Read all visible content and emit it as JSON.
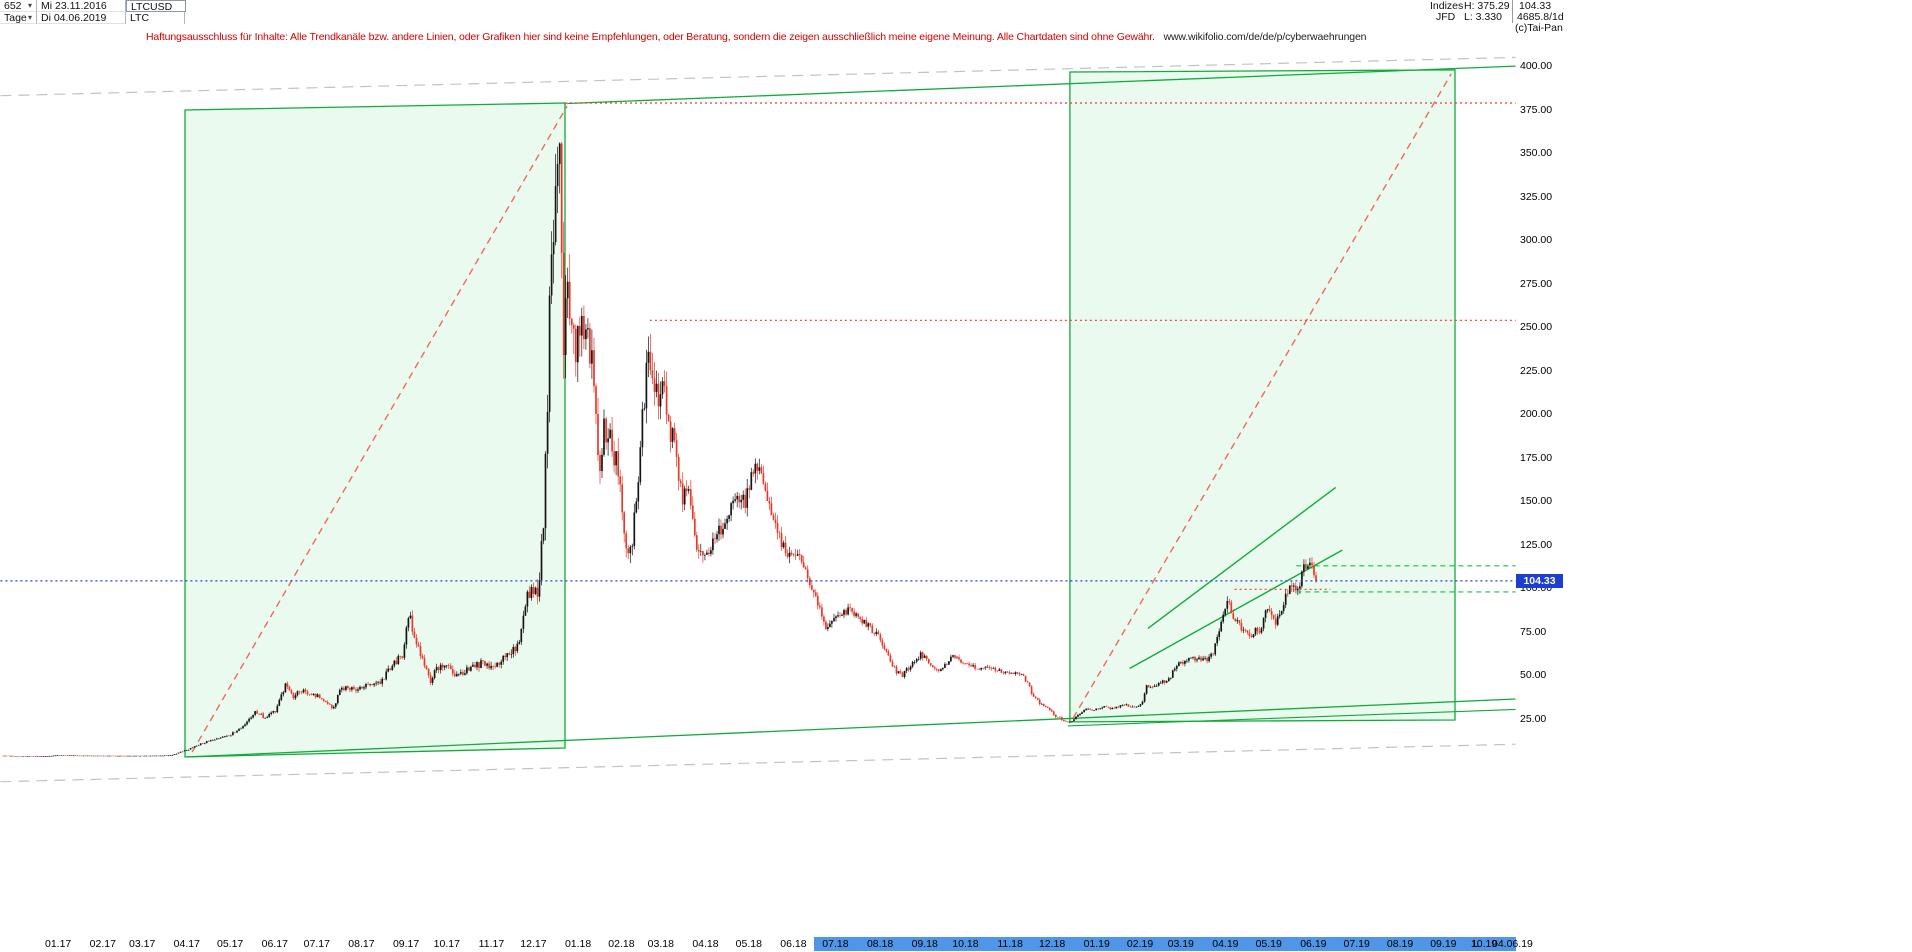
{
  "header": {
    "bars_count": "652",
    "first_date": "Mi 23.11.2016",
    "symbol": "LTCUSD",
    "period": "Tage",
    "last_date": "Di 04.06.2019",
    "symbol_short": "LTC",
    "right": {
      "indizes_label": "Indizes",
      "high_label": "H: 375.29",
      "last_price": "104.33",
      "broker": "JFD",
      "low_label": "L: 3.330",
      "volume": "4685.8/1d",
      "copyright": "(c)Tai-Pan"
    }
  },
  "icons": {
    "dropdown": "▾"
  },
  "disclaimer": {
    "text": "Haftungsausschluss für Inhalte: Alle Trendkanäle bzw. andere Linien, oder Grafiken hier sind keine Empfehlungen, oder Beratung, sondern die zeigen ausschließlich meine eigene Meinung. Alle Chartdaten sind ohne Gewähr.",
    "url": "www.wikifolio.com/de/de/p/cyberwaehrungen"
  },
  "chart_data": {
    "type": "candlestick",
    "symbol": "LTCUSD",
    "timeframe": "Tage",
    "bars": 652,
    "date_range": [
      "23.11.2016",
      "04.06.2019"
    ],
    "high": 375.29,
    "low": 3.33,
    "last": 104.33,
    "last_label": "104.33",
    "ylim": [
      0,
      420
    ],
    "grid": false,
    "colors": {
      "up": "#141414",
      "down": "#e8382a",
      "marker_bg": "#1c3ed2",
      "axis_highlight": "#4f96e8"
    },
    "y_axis": {
      "ticks": [
        "400.00",
        "375.00",
        "350.00",
        "325.00",
        "300.00",
        "275.00",
        "250.00",
        "225.00",
        "200.00",
        "175.00",
        "150.00",
        "125.00",
        "100.00",
        "75.00",
        "50.00",
        "25.00"
      ]
    },
    "x_axis": {
      "months": [
        [
          "01.17",
          0.042
        ],
        [
          "02.17",
          0.076
        ],
        [
          "03.17",
          0.106
        ],
        [
          "04.17",
          0.14
        ],
        [
          "05.17",
          0.173
        ],
        [
          "06.17",
          0.207
        ],
        [
          "07.17",
          0.239
        ],
        [
          "08.17",
          0.273
        ],
        [
          "09.17",
          0.307
        ],
        [
          "10.17",
          0.338
        ],
        [
          "11.17",
          0.372
        ],
        [
          "12.17",
          0.404
        ],
        [
          "01.18",
          0.438
        ],
        [
          "02.18",
          0.471
        ],
        [
          "03.18",
          0.501
        ],
        [
          "04.18",
          0.535
        ],
        [
          "05.18",
          0.568
        ],
        [
          "06.18",
          0.602
        ],
        [
          "07.18",
          0.634
        ],
        [
          "08.18",
          0.668
        ],
        [
          "09.18",
          0.702
        ],
        [
          "10.18",
          0.733
        ],
        [
          "11.18",
          0.767
        ],
        [
          "12.18",
          0.799
        ],
        [
          "01.19",
          0.833
        ],
        [
          "02.19",
          0.866
        ],
        [
          "03.19",
          0.897
        ],
        [
          "04.19",
          0.931
        ],
        [
          "05.19",
          0.964
        ],
        [
          "06.19",
          0.998
        ],
        [
          "07.19",
          1.031
        ],
        [
          "08.19",
          1.064
        ],
        [
          "09.19",
          1.097
        ],
        [
          "10.19",
          1.128
        ]
      ],
      "highlight_from_f": 0.618,
      "highlight_to_f": 1.1524,
      "last_marker": "L",
      "last_label": "04.06.19"
    },
    "price_path": [
      [
        0.0,
        3.9
      ],
      [
        0.015,
        3.6
      ],
      [
        0.03,
        3.5
      ],
      [
        0.042,
        4.2
      ],
      [
        0.06,
        4.0
      ],
      [
        0.076,
        3.9
      ],
      [
        0.095,
        3.8
      ],
      [
        0.11,
        3.9
      ],
      [
        0.128,
        4.1
      ],
      [
        0.134,
        5.8
      ],
      [
        0.14,
        7.2
      ],
      [
        0.15,
        10.5
      ],
      [
        0.162,
        13.8
      ],
      [
        0.173,
        15.8
      ],
      [
        0.182,
        20.5
      ],
      [
        0.192,
        29.5
      ],
      [
        0.2,
        25.5
      ],
      [
        0.208,
        30.0
      ],
      [
        0.215,
        44.0
      ],
      [
        0.221,
        38.0
      ],
      [
        0.228,
        41.5
      ],
      [
        0.236,
        39.0
      ],
      [
        0.245,
        36.5
      ],
      [
        0.251,
        30.5
      ],
      [
        0.258,
        43.5
      ],
      [
        0.266,
        42.0
      ],
      [
        0.276,
        43.5
      ],
      [
        0.288,
        47.0
      ],
      [
        0.298,
        57.0
      ],
      [
        0.305,
        63.0
      ],
      [
        0.309,
        86.0
      ],
      [
        0.314,
        69.0
      ],
      [
        0.32,
        60.0
      ],
      [
        0.325,
        46.5
      ],
      [
        0.331,
        54.0
      ],
      [
        0.338,
        54.5
      ],
      [
        0.345,
        50.5
      ],
      [
        0.355,
        53.5
      ],
      [
        0.364,
        56.5
      ],
      [
        0.372,
        55.0
      ],
      [
        0.38,
        59.0
      ],
      [
        0.388,
        64.0
      ],
      [
        0.394,
        71.0
      ],
      [
        0.399,
        95.0
      ],
      [
        0.403,
        101.0
      ],
      [
        0.408,
        99.0
      ],
      [
        0.412,
        140.0
      ],
      [
        0.4155,
        230.0
      ],
      [
        0.417,
        305.0
      ],
      [
        0.419,
        282.0
      ],
      [
        0.421,
        330.0
      ],
      [
        0.4232,
        372.0
      ],
      [
        0.425,
        310.0
      ],
      [
        0.427,
        238.0
      ],
      [
        0.43,
        270.0
      ],
      [
        0.433,
        258.0
      ],
      [
        0.436,
        234.0
      ],
      [
        0.44,
        242.0
      ],
      [
        0.444,
        251.0
      ],
      [
        0.449,
        232.0
      ],
      [
        0.4535,
        168.0
      ],
      [
        0.458,
        192.0
      ],
      [
        0.464,
        180.0
      ],
      [
        0.47,
        163.0
      ],
      [
        0.475,
        122.0
      ],
      [
        0.479,
        128.0
      ],
      [
        0.484,
        165.0
      ],
      [
        0.489,
        218.0
      ],
      [
        0.4925,
        232.0
      ],
      [
        0.497,
        208.0
      ],
      [
        0.503,
        213.0
      ],
      [
        0.51,
        186.0
      ],
      [
        0.517,
        150.0
      ],
      [
        0.522,
        163.0
      ],
      [
        0.529,
        120.0
      ],
      [
        0.535,
        118.0
      ],
      [
        0.541,
        127.0
      ],
      [
        0.55,
        139.0
      ],
      [
        0.558,
        154.0
      ],
      [
        0.565,
        149.0
      ],
      [
        0.57,
        166.0
      ],
      [
        0.574,
        174.0
      ],
      [
        0.582,
        152.0
      ],
      [
        0.59,
        131.0
      ],
      [
        0.598,
        117.0
      ],
      [
        0.603,
        121.0
      ],
      [
        0.61,
        112.0
      ],
      [
        0.618,
        96.0
      ],
      [
        0.626,
        78.0
      ],
      [
        0.632,
        81.0
      ],
      [
        0.639,
        84.5
      ],
      [
        0.646,
        88.0
      ],
      [
        0.653,
        81.5
      ],
      [
        0.661,
        77.0
      ],
      [
        0.668,
        71.0
      ],
      [
        0.674,
        61.5
      ],
      [
        0.68,
        52.5
      ],
      [
        0.685,
        50.0
      ],
      [
        0.692,
        56.5
      ],
      [
        0.699,
        62.0
      ],
      [
        0.705,
        58.0
      ],
      [
        0.711,
        52.5
      ],
      [
        0.718,
        56.5
      ],
      [
        0.724,
        61.0
      ],
      [
        0.73,
        58.0
      ],
      [
        0.737,
        56.0
      ],
      [
        0.744,
        53.0
      ],
      [
        0.752,
        55.0
      ],
      [
        0.76,
        52.5
      ],
      [
        0.768,
        52.0
      ],
      [
        0.776,
        50.5
      ],
      [
        0.781,
        44.5
      ],
      [
        0.785,
        37.5
      ],
      [
        0.791,
        33.5
      ],
      [
        0.797,
        30.0
      ],
      [
        0.802,
        26.5
      ],
      [
        0.808,
        24.0
      ],
      [
        0.813,
        23.0
      ],
      [
        0.819,
        27.5
      ],
      [
        0.825,
        31.0
      ],
      [
        0.831,
        30.0
      ],
      [
        0.837,
        32.0
      ],
      [
        0.845,
        31.0
      ],
      [
        0.853,
        33.0
      ],
      [
        0.861,
        32.0
      ],
      [
        0.867,
        33.5
      ],
      [
        0.871,
        43.5
      ],
      [
        0.879,
        45.0
      ],
      [
        0.887,
        47.0
      ],
      [
        0.894,
        55.5
      ],
      [
        0.902,
        59.0
      ],
      [
        0.909,
        60.5
      ],
      [
        0.915,
        59.0
      ],
      [
        0.921,
        61.5
      ],
      [
        0.927,
        79.0
      ],
      [
        0.932,
        94.0
      ],
      [
        0.938,
        83.0
      ],
      [
        0.944,
        76.0
      ],
      [
        0.951,
        73.5
      ],
      [
        0.957,
        76.5
      ],
      [
        0.963,
        87.5
      ],
      [
        0.969,
        78.5
      ],
      [
        0.975,
        91.0
      ],
      [
        0.981,
        104.0
      ],
      [
        0.986,
        96.5
      ],
      [
        0.991,
        112.0
      ],
      [
        0.995,
        117.0
      ],
      [
        1.0,
        104.33
      ]
    ],
    "volatility_path": [
      [
        0.0,
        0.035
      ],
      [
        0.13,
        0.035
      ],
      [
        0.15,
        0.075
      ],
      [
        0.3,
        0.075
      ],
      [
        0.4,
        0.09
      ],
      [
        0.41,
        0.11
      ],
      [
        0.43,
        0.13
      ],
      [
        0.45,
        0.1
      ],
      [
        0.5,
        0.09
      ],
      [
        0.55,
        0.07
      ],
      [
        0.63,
        0.06
      ],
      [
        0.7,
        0.05
      ],
      [
        0.77,
        0.045
      ],
      [
        0.8,
        0.06
      ],
      [
        0.83,
        0.04
      ],
      [
        0.87,
        0.05
      ],
      [
        0.92,
        0.06
      ],
      [
        0.95,
        0.07
      ],
      [
        1.0,
        0.06
      ]
    ],
    "annotations": {
      "boxes": [
        {
          "name": "trend-box-2017",
          "corners_fp": [
            [
              0.1386,
              374.8
            ],
            [
              0.428,
              378.8
            ],
            [
              0.428,
              8.3
            ],
            [
              0.1386,
              3.2
            ]
          ],
          "stroke": "#12ab3a",
          "fill": "rgba(60,205,100,0.10)"
        },
        {
          "name": "trend-box-2019",
          "corners_fp": [
            [
              0.8126,
              396.6
            ],
            [
              1.1059,
              397.8
            ],
            [
              1.1059,
              24.4
            ],
            [
              0.8126,
              23.3
            ]
          ],
          "stroke": "#12ab3a",
          "fill": "rgba(60,205,100,0.10)"
        }
      ],
      "lines": [
        {
          "name": "channel-upper-gray-dashed",
          "fp": [
            -0.002,
            383,
            1.152,
            405
          ],
          "color": "#c2c2c2",
          "dash": "11 7",
          "w": 1.2
        },
        {
          "name": "channel-lower-gray-dashed",
          "fp": [
            -0.002,
            -11,
            1.152,
            10.5
          ],
          "color": "#c2c2c2",
          "dash": "11 7",
          "w": 1.2
        },
        {
          "name": "resistance-green-upper",
          "fp": [
            0.4296,
            378.5,
            1.152,
            400
          ],
          "color": "#12ab3a",
          "w": 1.3
        },
        {
          "name": "support-green-lower",
          "fp": [
            0.141,
            3.2,
            1.152,
            36.5
          ],
          "color": "#12ab3a",
          "w": 1.3
        },
        {
          "name": "support-green-from-dec18-low",
          "fp": [
            0.811,
            21,
            1.152,
            30.5
          ],
          "color": "#12ab3a",
          "w": 1.1
        },
        {
          "name": "rally-trendline-2017-red-dashed",
          "fp": [
            0.144,
            6,
            0.4296,
            377
          ],
          "color": "#ee6a5a",
          "dash": "7 5",
          "w": 1.4
        },
        {
          "name": "rally-trendline-2019-red-dashed",
          "fp": [
            0.815,
            25.5,
            1.103,
            395.5
          ],
          "color": "#ee6a5a",
          "dash": "7 5",
          "w": 1.4
        },
        {
          "name": "channel-2019-upper-green",
          "fp": [
            0.872,
            77,
            1.015,
            158
          ],
          "color": "#12ab3a",
          "w": 1.4
        },
        {
          "name": "channel-2019-lower-green",
          "fp": [
            0.858,
            54,
            1.02,
            122
          ],
          "color": "#12ab3a",
          "w": 1.4
        },
        {
          "name": "high-375-red-dotted",
          "fp": [
            0.428,
            378.8,
            1.152,
            378.8
          ],
          "color": "#e83a3a",
          "dash": "2 3",
          "w": 1.2,
          "front": true
        },
        {
          "name": "level-250-red-dotted",
          "fp": [
            0.4927,
            254,
            1.152,
            254
          ],
          "color": "#e83a3a",
          "dash": "2 3",
          "w": 1.2,
          "front": true
        },
        {
          "name": "current-price-blue-dotted",
          "fp": [
            -0.002,
            104.33,
            1.152,
            104.33
          ],
          "color": "#2b3fd6",
          "dash": "2 3",
          "w": 1.3,
          "front": true
        },
        {
          "name": "target-green-dashed-upper",
          "fp": [
            0.985,
            113,
            1.152,
            113
          ],
          "color": "#15c04a",
          "dash": "5 4",
          "w": 1.1,
          "front": true
        },
        {
          "name": "target-green-dashed-lower",
          "fp": [
            0.985,
            98,
            1.152,
            98
          ],
          "color": "#15c04a",
          "dash": "5 4",
          "w": 1.1,
          "front": true
        },
        {
          "name": "level-100-red-dotted-short",
          "fp": [
            0.938,
            99.5,
            1.011,
            99.5
          ],
          "color": "#e83a3a",
          "dash": "2 3",
          "w": 1.1,
          "front": true
        }
      ]
    }
  }
}
